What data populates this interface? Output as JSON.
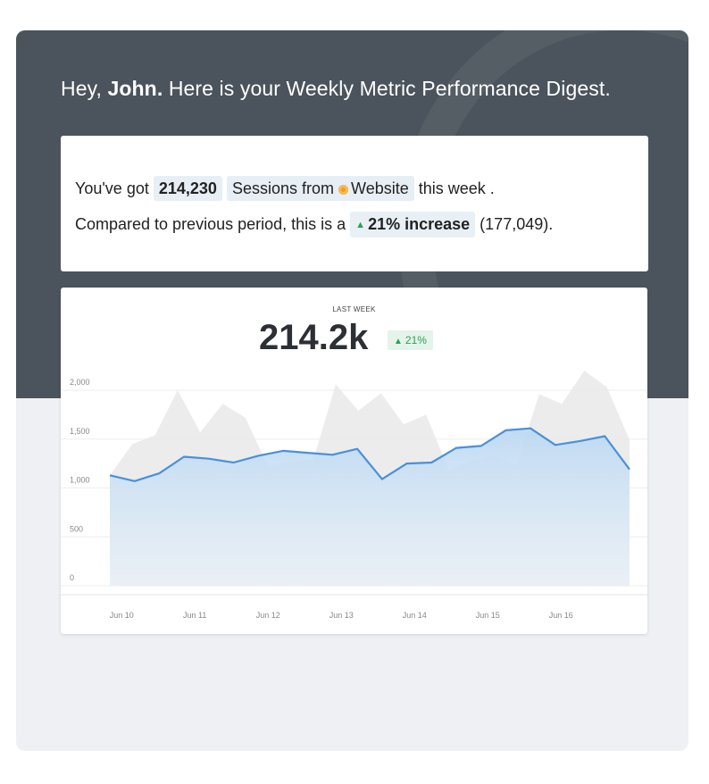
{
  "greeting": {
    "prefix": "Hey, ",
    "name": "John.",
    "suffix": " Here is your Weekly Metric Performance Digest."
  },
  "summary": {
    "text1": "You've got",
    "sessions_value": "214,230",
    "metric_label": "Sessions from",
    "source_icon": "website-icon",
    "source_name": "Website",
    "text2": "this week .",
    "text3": "Compared to previous period, this is a",
    "change_arrow": "▲",
    "change_label": "21% increase",
    "previous_value": "(177,049)."
  },
  "kpi": {
    "label": "LAST WEEK",
    "value": "214.2k",
    "badge_arrow": "▲",
    "badge_text": "21%"
  },
  "colors": {
    "header_bg": "#4b535c",
    "current_line": "#4a90d9",
    "previous_area": "#e9e9e9",
    "positive": "#2e9e57"
  },
  "chart_data": {
    "type": "area",
    "ylim": [
      0,
      2000
    ],
    "y_ticks": [
      "0",
      "500",
      "1,000",
      "1,500",
      "2,000"
    ],
    "y_tick_values": [
      0,
      500,
      1000,
      1500,
      2000
    ],
    "x_ticks": [
      "Jun 10",
      "Jun 11",
      "Jun 12",
      "Jun 13",
      "Jun 14",
      "Jun 15",
      "Jun 16"
    ],
    "x_range": [
      0,
      22
    ],
    "x_tick_positions": [
      0.5,
      3.6,
      6.7,
      9.8,
      12.9,
      16.0,
      19.1
    ],
    "grid": true,
    "series": [
      {
        "values": [
          1130,
          1070,
          1150,
          1320,
          1300,
          1260,
          1330,
          1380,
          1360,
          1340,
          1400,
          1090,
          1250,
          1260,
          1410,
          1430,
          1590,
          1610,
          1440,
          1480,
          1530,
          1190
        ]
      },
      {
        "values": [
          1130,
          1450,
          1540,
          2000,
          1570,
          1860,
          1720,
          1220,
          1270,
          1280,
          2060,
          1790,
          1970,
          1650,
          1750,
          1180,
          1280,
          1330,
          1230,
          1960,
          1860,
          2200,
          2030,
          1490
        ]
      }
    ]
  }
}
